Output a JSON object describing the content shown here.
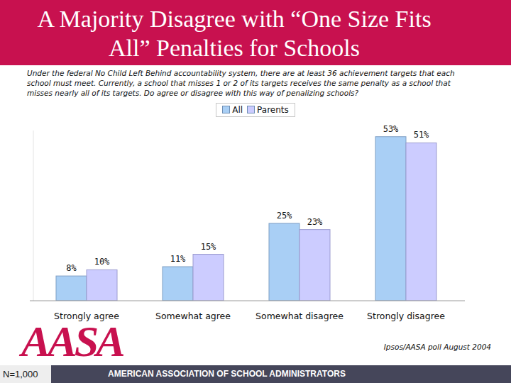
{
  "chart_data": {
    "type": "bar",
    "title": "A Majority Disagree with “One Size Fits All” Penalties for Schools",
    "subtitle": "Under the federal No Child Left Behind accountability system, there are at least 36 achievement targets that each school must meet.  Currently, a school that misses 1 or 2 of its targets receives the same penalty as a school that misses nearly all of its targets.  Do agree or disagree with this way of penalizing schools?",
    "categories": [
      "Strongly agree",
      "Somewhat agree",
      "Somewhat disagree",
      "Strongly disagree"
    ],
    "series": [
      {
        "name": "All",
        "color": "#a9cff5",
        "values": [
          8,
          11,
          25,
          53
        ],
        "value_labels": [
          "8%",
          "11%",
          "25%",
          "53%"
        ]
      },
      {
        "name": "Parents",
        "color": "#ccccff",
        "values": [
          10,
          15,
          23,
          51
        ],
        "value_labels": [
          "10%",
          "15%",
          "23%",
          "51%"
        ]
      }
    ],
    "ylim": [
      0,
      55
    ],
    "tick_labels": "x",
    "data_labels": true,
    "legend": "top",
    "source": "Ipsos/AASA poll August 2004",
    "sample_size": "N=1,000",
    "logo": "AASA",
    "organization": "AMERICAN ASSOCIATION OF SCHOOL ADMINISTRATORS"
  }
}
